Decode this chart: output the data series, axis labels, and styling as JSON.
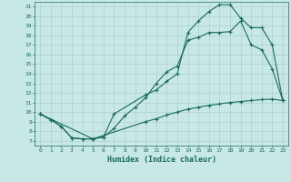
{
  "xlabel": "Humidex (Indice chaleur)",
  "bg_color": "#c8e8e8",
  "line_color": "#1a6b5a",
  "grid_color": "#b0d0d0",
  "xlim": [
    -0.5,
    23.5
  ],
  "ylim": [
    6.5,
    21.5
  ],
  "xticks": [
    0,
    1,
    2,
    3,
    4,
    5,
    6,
    7,
    8,
    9,
    10,
    11,
    12,
    13,
    14,
    15,
    16,
    17,
    18,
    19,
    20,
    21,
    22,
    23
  ],
  "yticks": [
    7,
    8,
    9,
    10,
    11,
    12,
    13,
    14,
    15,
    16,
    17,
    18,
    19,
    20,
    21
  ],
  "curve1_x": [
    0,
    1,
    2,
    3,
    4,
    5,
    6,
    7,
    8,
    9,
    10,
    11,
    12,
    13,
    14,
    15,
    16,
    17,
    18,
    19,
    20,
    21,
    22,
    23
  ],
  "curve1_y": [
    9.8,
    9.2,
    8.5,
    7.3,
    7.2,
    7.2,
    7.4,
    8.3,
    9.6,
    10.5,
    11.5,
    13.0,
    14.2,
    14.8,
    17.5,
    17.8,
    18.3,
    18.3,
    18.4,
    19.5,
    17.0,
    16.5,
    14.5,
    11.2
  ],
  "curve2_x": [
    0,
    1,
    2,
    3,
    4,
    5,
    6,
    7,
    10,
    11,
    12,
    13,
    14,
    15,
    16,
    17,
    18,
    19,
    20,
    21,
    22,
    23
  ],
  "curve2_y": [
    9.8,
    9.2,
    8.5,
    7.3,
    7.2,
    7.2,
    7.4,
    9.8,
    11.8,
    12.3,
    13.2,
    14.0,
    18.3,
    19.5,
    20.5,
    21.2,
    21.2,
    19.8,
    18.8,
    18.8,
    17.0,
    11.2
  ],
  "curve3_x": [
    0,
    5,
    10,
    11,
    12,
    13,
    14,
    15,
    16,
    17,
    18,
    19,
    20,
    21,
    22,
    23
  ],
  "curve3_y": [
    9.8,
    7.2,
    9.0,
    9.3,
    9.7,
    10.0,
    10.3,
    10.5,
    10.7,
    10.85,
    11.0,
    11.1,
    11.2,
    11.3,
    11.35,
    11.2
  ]
}
